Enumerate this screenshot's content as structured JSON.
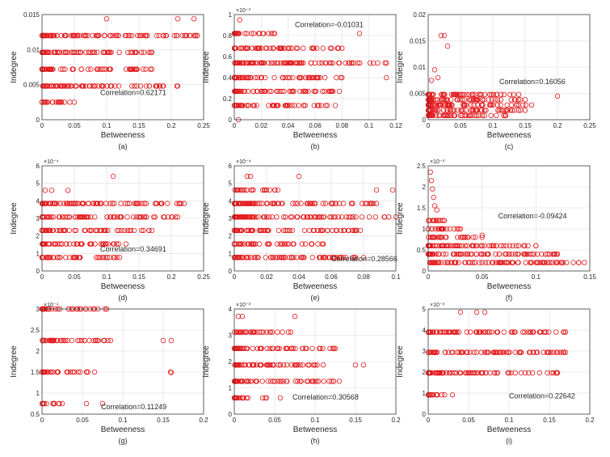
{
  "chart_data": [
    {
      "type": "scatter",
      "caption": "(a)",
      "xlabel": "Betweeness",
      "ylabel": "Indegree",
      "xlim": [
        0,
        0.25
      ],
      "ylim": [
        0,
        0.015
      ],
      "xticks": [
        "0",
        "0.05",
        "0.1",
        "0.15",
        "0.2",
        "0.25"
      ],
      "yticks": [
        "0",
        "0.005",
        "0.01",
        "0.015"
      ],
      "exponent": "",
      "annotation": "Correlation=0.62171",
      "annotation_pos": [
        0.09,
        0.0035
      ],
      "levels": [
        0.0025,
        0.0048,
        0.0072,
        0.0096,
        0.012
      ],
      "level_max": [
        0.05,
        0.21,
        0.17,
        0.17,
        0.24
      ],
      "outliers": [
        [
          0.1,
          0.0144
        ],
        [
          0.21,
          0.0144
        ],
        [
          0.235,
          0.0144
        ],
        [
          0.24,
          0.012
        ]
      ],
      "grid": true
    },
    {
      "type": "scatter",
      "caption": "(b)",
      "xlabel": "Betweeness",
      "ylabel": "Indegree",
      "xlim": [
        0,
        0.12
      ],
      "ylim": [
        0,
        1.0
      ],
      "xticks": [
        "0",
        "0.02",
        "0.04",
        "0.06",
        "0.08",
        "0.1",
        "0.12"
      ],
      "yticks": [
        "0",
        "0.2",
        "0.4",
        "0.6",
        "0.8",
        "1"
      ],
      "exponent": "×10⁻³",
      "annotation": "Correlation=-0.01031",
      "annotation_pos": [
        0.045,
        0.88
      ],
      "levels": [
        0.135,
        0.27,
        0.4,
        0.54,
        0.68,
        0.82
      ],
      "level_max": [
        0.075,
        0.078,
        0.08,
        0.113,
        0.08,
        0.03
      ],
      "outliers": [
        [
          0.004,
          0.95
        ],
        [
          0.113,
          0.4
        ],
        [
          0.093,
          0.82
        ],
        [
          0.003,
          0.0
        ]
      ],
      "grid": true
    },
    {
      "type": "scatter",
      "caption": "(c)",
      "xlabel": "Betweeness",
      "ylabel": "Indegree",
      "xlim": [
        0,
        0.25
      ],
      "ylim": [
        0,
        0.02
      ],
      "xticks": [
        "0",
        "0.05",
        "0.1",
        "0.15",
        "0.2",
        "0.25"
      ],
      "yticks": [
        "0",
        "0.005",
        "0.01",
        "0.015",
        "0.02"
      ],
      "exponent": "",
      "annotation": "Correlation=0.16056",
      "annotation_pos": [
        0.11,
        0.0068
      ],
      "levels": [
        0.0008,
        0.0018,
        0.0028,
        0.0038,
        0.0048
      ],
      "level_max": [
        0.12,
        0.15,
        0.16,
        0.15,
        0.14
      ],
      "outliers": [
        [
          0.02,
          0.016
        ],
        [
          0.025,
          0.016
        ],
        [
          0.03,
          0.014
        ],
        [
          0.2,
          0.0045
        ],
        [
          0.01,
          0.0095
        ],
        [
          0.015,
          0.008
        ],
        [
          0.005,
          0.0075
        ]
      ],
      "grid": true
    },
    {
      "type": "scatter",
      "caption": "(d)",
      "xlabel": "Betweeness",
      "ylabel": "Indegree",
      "xlim": [
        0,
        0.25
      ],
      "ylim": [
        0,
        6
      ],
      "xticks": [
        "0",
        "0.05",
        "0.1",
        "0.15",
        "0.2",
        "0.25"
      ],
      "yticks": [
        "0",
        "1",
        "2",
        "3",
        "4",
        "5",
        "6"
      ],
      "exponent": "×10⁻⁴",
      "annotation": "Correlation=0.34691",
      "annotation_pos": [
        0.09,
        1.1
      ],
      "levels": [
        0.77,
        1.54,
        2.31,
        3.08,
        3.85
      ],
      "level_max": [
        0.12,
        0.13,
        0.17,
        0.21,
        0.22
      ],
      "outliers": [
        [
          0.11,
          5.4
        ],
        [
          0.04,
          4.6
        ],
        [
          0.005,
          4.6
        ],
        [
          0.015,
          4.6
        ]
      ],
      "grid": true
    },
    {
      "type": "scatter",
      "caption": "(e)",
      "xlabel": "Betweeness",
      "ylabel": "Indegree",
      "xlim": [
        0,
        0.1
      ],
      "ylim": [
        0,
        6
      ],
      "xticks": [
        "0",
        "0.02",
        "0.04",
        "0.06",
        "0.08",
        "0.1"
      ],
      "yticks": [
        "0",
        "1",
        "2",
        "3",
        "4",
        "5",
        "6"
      ],
      "exponent": "×10⁻⁴",
      "annotation": "Correlation=0.28566",
      "annotation_pos": [
        0.06,
        0.55
      ],
      "levels": [
        0.77,
        1.54,
        2.31,
        3.08,
        3.85,
        4.62
      ],
      "level_max": [
        0.08,
        0.055,
        0.078,
        0.1,
        0.088,
        0.027
      ],
      "outliers": [
        [
          0.008,
          5.4
        ],
        [
          0.01,
          5.4
        ],
        [
          0.04,
          5.4
        ],
        [
          0.098,
          4.62
        ],
        [
          0.088,
          4.62
        ]
      ],
      "grid": true
    },
    {
      "type": "scatter",
      "caption": "(f)",
      "xlabel": "Betweeness",
      "ylabel": "Indegree",
      "xlim": [
        0,
        0.15
      ],
      "ylim": [
        0,
        2.5
      ],
      "xticks": [
        "0",
        "0.05",
        "0.1",
        "0.15"
      ],
      "yticks": [
        "0",
        "0.5",
        "1",
        "1.5",
        "2",
        "2.5"
      ],
      "exponent": "×10⁻³",
      "annotation": "Correlation=-0.09424",
      "annotation_pos": [
        0.065,
        1.25
      ],
      "levels": [
        0.2,
        0.4,
        0.6,
        0.8,
        1.0,
        1.2
      ],
      "level_max": [
        0.145,
        0.12,
        0.1,
        0.05,
        0.03,
        0.015
      ],
      "outliers": [
        [
          0.002,
          2.35
        ],
        [
          0.003,
          2.15
        ],
        [
          0.004,
          1.95
        ],
        [
          0.005,
          1.75
        ],
        [
          0.006,
          1.55
        ],
        [
          0.008,
          1.45
        ],
        [
          0.05,
          0.85
        ],
        [
          0.1,
          0.6
        ]
      ],
      "grid": true
    },
    {
      "type": "scatter",
      "caption": "(g)",
      "xlabel": "Betweeness",
      "ylabel": "Indegree",
      "xlim": [
        0,
        0.2
      ],
      "ylim": [
        0.5,
        3
      ],
      "xticks": [
        "0",
        "0.05",
        "0.1",
        "0.15",
        "0.2"
      ],
      "yticks": [
        "0.5",
        "1",
        "1.5",
        "2",
        "2.5",
        "3"
      ],
      "exponent": "×10⁻⁴",
      "annotation": "Correlation=0.11249",
      "annotation_pos": [
        0.073,
        0.62
      ],
      "levels": [
        0.75,
        1.5,
        2.25,
        3.0
      ],
      "level_max": [
        0.025,
        0.065,
        0.085,
        0.08
      ],
      "outliers": [
        [
          0.15,
          2.25
        ],
        [
          0.16,
          2.25
        ],
        [
          0.159,
          1.5
        ],
        [
          0.16,
          1.49
        ],
        [
          0.055,
          0.75
        ],
        [
          0.075,
          0.75
        ]
      ],
      "grid": true
    },
    {
      "type": "scatter",
      "caption": "(h)",
      "xlabel": "Betweeness",
      "ylabel": "Indegree",
      "xlim": [
        0,
        0.2
      ],
      "ylim": [
        0,
        4
      ],
      "xticks": [
        "0",
        "0.05",
        "0.1",
        "0.15",
        "0.2"
      ],
      "yticks": [
        "0",
        "1",
        "2",
        "3",
        "4"
      ],
      "exponent": "×10⁻³",
      "annotation": "Correlation=0.30568",
      "annotation_pos": [
        0.072,
        0.55
      ],
      "levels": [
        0.62,
        1.25,
        1.87,
        2.5,
        3.12
      ],
      "level_max": [
        0.04,
        0.13,
        0.11,
        0.125,
        0.07
      ],
      "outliers": [
        [
          0.005,
          3.72
        ],
        [
          0.01,
          3.72
        ],
        [
          0.075,
          3.72
        ],
        [
          0.15,
          1.87
        ],
        [
          0.16,
          1.87
        ],
        [
          0.057,
          0.62
        ]
      ],
      "grid": true
    },
    {
      "type": "scatter",
      "caption": "(i)",
      "xlabel": "Betweeness",
      "ylabel": "Indegree",
      "xlim": [
        0,
        0.2
      ],
      "ylim": [
        0,
        5
      ],
      "xticks": [
        "0",
        "0.05",
        "0.1",
        "0.15",
        "0.2"
      ],
      "yticks": [
        "0",
        "1",
        "2",
        "3",
        "4",
        "5"
      ],
      "exponent": "×10⁻³",
      "annotation": "Correlation=0.22642",
      "annotation_pos": [
        0.1,
        0.75
      ],
      "levels": [
        0.92,
        1.96,
        2.94,
        3.9
      ],
      "level_max": [
        0.03,
        0.16,
        0.17,
        0.17
      ],
      "outliers": [
        [
          0.06,
          4.85
        ],
        [
          0.07,
          4.85
        ],
        [
          0.04,
          4.85
        ],
        [
          0.155,
          1.96
        ]
      ],
      "grid": true
    }
  ]
}
